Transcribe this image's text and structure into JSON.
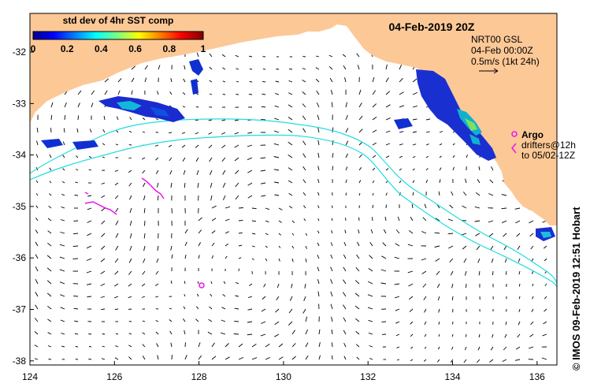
{
  "map": {
    "date_title": "04-Feb-2019 20Z",
    "colorbar": {
      "title": "std dev of 4hr SST comp",
      "ticks": [
        "0",
        "0.2",
        "0.4",
        "0.6",
        "0.8",
        "1"
      ]
    },
    "current_legend": {
      "line1": "NRT00 GSL",
      "line2": "04-Feb 00:00Z",
      "line3": "0.5m/s (1kt 24h)"
    },
    "argo_legend": {
      "label": "Argo",
      "drifters_line1": "drifters@12h",
      "drifters_line2": "to 05/02-12Z"
    },
    "x_ticks": [
      "124",
      "126",
      "128",
      "130",
      "132",
      "134",
      "136"
    ],
    "y_ticks": [
      "-32",
      "-33",
      "-34",
      "-35",
      "-36",
      "-37",
      "-38"
    ],
    "credit": "© IMOS 09-Feb-2019 12:51 Hobart",
    "colors": {
      "land": "#fcc896",
      "isobath": "#22dddd",
      "argo": "#ee11ee",
      "arrow": "#000000"
    }
  }
}
